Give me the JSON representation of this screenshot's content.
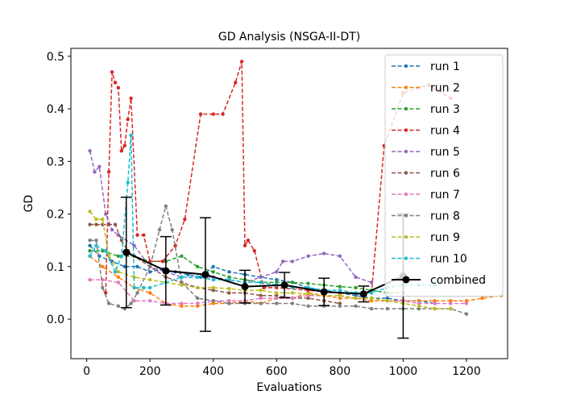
{
  "chart_data": {
    "type": "line",
    "title": "GD Analysis (NSGA-II-DT)",
    "xlabel": "Evaluations",
    "ylabel": "GD",
    "xlim": [
      -50,
      1330
    ],
    "ylim": [
      -0.075,
      0.515
    ],
    "xticks": [
      0,
      200,
      400,
      600,
      800,
      1000,
      1200
    ],
    "yticks": [
      0.0,
      0.1,
      0.2,
      0.3,
      0.4,
      0.5
    ],
    "xtick_labels": [
      "0",
      "200",
      "400",
      "600",
      "800",
      "1000",
      "1200"
    ],
    "ytick_labels": [
      "0.0",
      "0.1",
      "0.2",
      "0.3",
      "0.4",
      "0.5"
    ],
    "grid": false,
    "legend_position": "top-right",
    "series": [
      {
        "name": "run 1",
        "color": "#1f77b4",
        "style": "dashed",
        "x": [
          10,
          40,
          80,
          120,
          160,
          200,
          240,
          280,
          320,
          360,
          400,
          450,
          500,
          550,
          600,
          650,
          700,
          750,
          800,
          850,
          900,
          950,
          1000,
          1050,
          1100
        ],
        "y": [
          0.14,
          0.12,
          0.11,
          0.1,
          0.1,
          0.09,
          0.095,
          0.09,
          0.085,
          0.08,
          0.1,
          0.09,
          0.085,
          0.08,
          0.075,
          0.07,
          0.06,
          0.055,
          0.05,
          0.045,
          0.04,
          0.04,
          0.035,
          0.035,
          0.03
        ]
      },
      {
        "name": "run 2",
        "color": "#ff7f0e",
        "style": "dashed",
        "x": [
          10,
          50,
          100,
          150,
          200,
          250,
          300,
          350,
          400,
          450,
          500,
          550,
          600,
          650,
          700,
          750,
          800,
          850,
          900,
          950,
          1000,
          1050,
          1100,
          1150,
          1200,
          1250,
          1310
        ],
        "y": [
          0.12,
          0.1,
          0.08,
          0.06,
          0.05,
          0.03,
          0.025,
          0.025,
          0.03,
          0.03,
          0.035,
          0.03,
          0.04,
          0.04,
          0.05,
          0.045,
          0.04,
          0.04,
          0.035,
          0.035,
          0.035,
          0.035,
          0.035,
          0.035,
          0.035,
          0.04,
          0.045
        ]
      },
      {
        "name": "run 3",
        "color": "#2ca02c",
        "style": "dashed",
        "x": [
          10,
          50,
          100,
          150,
          200,
          250,
          300,
          350,
          400,
          450,
          500,
          550,
          600,
          650,
          700,
          750,
          800,
          850,
          900,
          950,
          1000
        ],
        "y": [
          0.13,
          0.13,
          0.12,
          0.12,
          0.11,
          0.11,
          0.12,
          0.1,
          0.09,
          0.08,
          0.075,
          0.07,
          0.07,
          0.07,
          0.068,
          0.065,
          0.062,
          0.06,
          0.055,
          0.05,
          0.05
        ]
      },
      {
        "name": "run 4",
        "color": "#d62728",
        "style": "dashed",
        "x": [
          60,
          70,
          80,
          90,
          100,
          110,
          120,
          130,
          140,
          160,
          180,
          200,
          240,
          280,
          310,
          360,
          400,
          430,
          470,
          490,
          500,
          510,
          530,
          560,
          600,
          700,
          800,
          900,
          940,
          1000,
          1050,
          1080,
          1150
        ],
        "y": [
          0.05,
          0.28,
          0.47,
          0.45,
          0.44,
          0.32,
          0.33,
          0.38,
          0.42,
          0.16,
          0.16,
          0.11,
          0.11,
          0.14,
          0.19,
          0.39,
          0.39,
          0.39,
          0.45,
          0.49,
          0.14,
          0.15,
          0.13,
          0.06,
          0.06,
          0.055,
          0.05,
          0.05,
          0.33,
          0.43,
          0.44,
          0.445,
          0.42
        ]
      },
      {
        "name": "run 5",
        "color": "#9467bd",
        "style": "dashed",
        "x": [
          10,
          25,
          40,
          60,
          80,
          100,
          150,
          200,
          250,
          300,
          350,
          400,
          450,
          500,
          550,
          600,
          620,
          650,
          700,
          750,
          800,
          850,
          900
        ],
        "y": [
          0.32,
          0.28,
          0.29,
          0.2,
          0.17,
          0.16,
          0.14,
          0.1,
          0.09,
          0.08,
          0.08,
          0.08,
          0.075,
          0.07,
          0.08,
          0.09,
          0.11,
          0.11,
          0.12,
          0.125,
          0.12,
          0.08,
          0.07
        ]
      },
      {
        "name": "run 6",
        "color": "#8c564b",
        "style": "dashed",
        "x": [
          10,
          30,
          50,
          70,
          90,
          110,
          130,
          150,
          200,
          250,
          300,
          350,
          400,
          450,
          500,
          550,
          600,
          650,
          700,
          750,
          800
        ],
        "y": [
          0.18,
          0.18,
          0.18,
          0.18,
          0.18,
          0.15,
          0.13,
          0.12,
          0.1,
          0.08,
          0.07,
          0.06,
          0.055,
          0.05,
          0.05,
          0.045,
          0.045,
          0.04,
          0.04,
          0.035,
          0.03
        ]
      },
      {
        "name": "run 7",
        "color": "#e377c2",
        "style": "dashed",
        "x": [
          10,
          50,
          100,
          150,
          200,
          250,
          300,
          350,
          400,
          450,
          500,
          550,
          600,
          650,
          700,
          750,
          800,
          850,
          900,
          950,
          1000,
          1050,
          1100,
          1150,
          1200
        ],
        "y": [
          0.075,
          0.075,
          0.07,
          0.035,
          0.035,
          0.03,
          0.03,
          0.03,
          0.035,
          0.035,
          0.035,
          0.04,
          0.04,
          0.04,
          0.045,
          0.045,
          0.045,
          0.04,
          0.04,
          0.035,
          0.035,
          0.03,
          0.03,
          0.03,
          0.03
        ]
      },
      {
        "name": "run 8",
        "color": "#7f7f7f",
        "style": "dashed",
        "x": [
          10,
          30,
          50,
          70,
          100,
          120,
          140,
          160,
          200,
          230,
          250,
          270,
          300,
          350,
          400,
          450,
          500,
          550,
          600,
          650,
          700,
          750,
          800,
          850,
          900,
          950,
          1000,
          1050,
          1100,
          1150,
          1200
        ],
        "y": [
          0.15,
          0.15,
          0.06,
          0.03,
          0.025,
          0.02,
          0.03,
          0.05,
          0.1,
          0.17,
          0.215,
          0.17,
          0.07,
          0.04,
          0.035,
          0.03,
          0.03,
          0.03,
          0.03,
          0.03,
          0.025,
          0.025,
          0.025,
          0.025,
          0.02,
          0.02,
          0.02,
          0.02,
          0.02,
          0.02,
          0.01
        ]
      },
      {
        "name": "run 9",
        "color": "#bcbd22",
        "style": "dashed",
        "x": [
          10,
          30,
          50,
          70,
          100,
          150,
          200,
          250,
          300,
          350,
          400,
          450,
          500,
          550,
          600,
          650,
          700,
          750,
          800,
          850,
          900,
          950,
          1000,
          1050,
          1100,
          1150
        ],
        "y": [
          0.205,
          0.19,
          0.19,
          0.12,
          0.09,
          0.08,
          0.075,
          0.07,
          0.065,
          0.06,
          0.06,
          0.058,
          0.055,
          0.055,
          0.05,
          0.05,
          0.048,
          0.045,
          0.045,
          0.04,
          0.04,
          0.035,
          0.03,
          0.025,
          0.02,
          0.02
        ]
      },
      {
        "name": "run 10",
        "color": "#17becf",
        "style": "dashed",
        "x": [
          10,
          30,
          60,
          90,
          110,
          130,
          140,
          150,
          180,
          200,
          250,
          300,
          350,
          400,
          450,
          500,
          550,
          600,
          650,
          700,
          750,
          800,
          850,
          900,
          950,
          1000,
          1050,
          1100
        ],
        "y": [
          0.12,
          0.14,
          0.13,
          0.09,
          0.12,
          0.26,
          0.35,
          0.06,
          0.06,
          0.06,
          0.07,
          0.08,
          0.08,
          0.075,
          0.075,
          0.07,
          0.07,
          0.065,
          0.06,
          0.06,
          0.055,
          0.055,
          0.05,
          0.05,
          0.06,
          0.065,
          0.065,
          0.065
        ]
      },
      {
        "name": "combined",
        "color": "#000000",
        "style": "solid",
        "x": [
          125,
          250,
          375,
          500,
          625,
          750,
          875,
          1000
        ],
        "y": [
          0.127,
          0.092,
          0.085,
          0.062,
          0.065,
          0.052,
          0.048,
          0.082
        ],
        "err": [
          0.105,
          0.065,
          0.108,
          0.031,
          0.024,
          0.026,
          0.015,
          0.118
        ]
      }
    ]
  }
}
